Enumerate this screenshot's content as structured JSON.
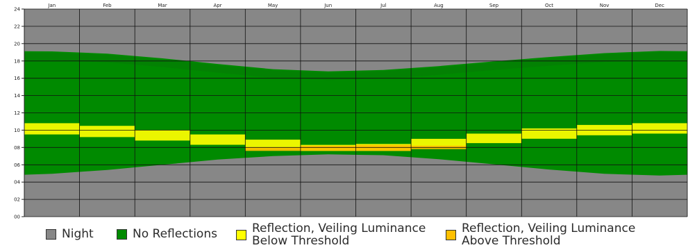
{
  "chart_data": {
    "type": "heatmap",
    "title": "",
    "xlabel": "",
    "ylabel": "",
    "x_months": [
      "Jan",
      "Feb",
      "Mar",
      "Apr",
      "May",
      "Jun",
      "Jul",
      "Aug",
      "Sep",
      "Oct",
      "Nov",
      "Dec"
    ],
    "y_ticks": [
      "00",
      "02",
      "04",
      "06",
      "08",
      "10",
      "12",
      "14",
      "16",
      "18",
      "20",
      "22",
      "24"
    ],
    "ylim": [
      0,
      24
    ],
    "grid": true,
    "legend_position": "bottom",
    "categories": [
      {
        "name": "Night",
        "color": "#878787"
      },
      {
        "name": "No Reflections",
        "color": "#008a00"
      },
      {
        "name": "Reflection, Veiling Luminance\nBelow Threshold",
        "color": "#ffff00"
      },
      {
        "name": "Reflection, Veiling Luminance\nAbove Threshold",
        "color": "#ffc000"
      }
    ],
    "daylight_hours": [
      {
        "month": "Jan",
        "sunrise": 4.95,
        "sunset": 19.1
      },
      {
        "month": "Feb",
        "sunrise": 5.4,
        "sunset": 18.85
      },
      {
        "month": "Mar",
        "sunrise": 6.0,
        "sunset": 18.3
      },
      {
        "month": "Apr",
        "sunrise": 6.6,
        "sunset": 17.65
      },
      {
        "month": "May",
        "sunrise": 7.0,
        "sunset": 17.05
      },
      {
        "month": "Jun",
        "sunrise": 7.2,
        "sunset": 16.8
      },
      {
        "month": "Jul",
        "sunrise": 7.1,
        "sunset": 16.95
      },
      {
        "month": "Aug",
        "sunrise": 6.65,
        "sunset": 17.4
      },
      {
        "month": "Sep",
        "sunrise": 6.05,
        "sunset": 17.95
      },
      {
        "month": "Oct",
        "sunrise": 5.45,
        "sunset": 18.45
      },
      {
        "month": "Nov",
        "sunrise": 4.95,
        "sunset": 18.9
      },
      {
        "month": "Dec",
        "sunrise": 4.75,
        "sunset": 19.15
      }
    ],
    "reflection_below_threshold_band": [
      {
        "month": "Jan",
        "start": 9.5,
        "end": 10.8
      },
      {
        "month": "Feb",
        "start": 9.2,
        "end": 10.5
      },
      {
        "month": "Mar",
        "start": 8.8,
        "end": 10.0
      },
      {
        "month": "Apr",
        "start": 8.3,
        "end": 9.5
      },
      {
        "month": "May",
        "start": 7.8,
        "end": 8.9
      },
      {
        "month": "Jun",
        "start": 7.6,
        "end": 8.3
      },
      {
        "month": "Jul",
        "start": 7.6,
        "end": 8.4
      },
      {
        "month": "Aug",
        "start": 8.0,
        "end": 9.0
      },
      {
        "month": "Sep",
        "start": 8.5,
        "end": 9.6
      },
      {
        "month": "Oct",
        "start": 9.0,
        "end": 10.2
      },
      {
        "month": "Nov",
        "start": 9.4,
        "end": 10.6
      },
      {
        "month": "Dec",
        "start": 9.6,
        "end": 10.8
      }
    ],
    "reflection_above_threshold_band": [
      {
        "month": "May",
        "start": 7.6,
        "end": 8.0
      },
      {
        "month": "Jun",
        "start": 7.6,
        "end": 8.2
      },
      {
        "month": "Jul",
        "start": 7.6,
        "end": 8.3
      },
      {
        "month": "Aug",
        "start": 7.8,
        "end": 8.2
      }
    ]
  }
}
